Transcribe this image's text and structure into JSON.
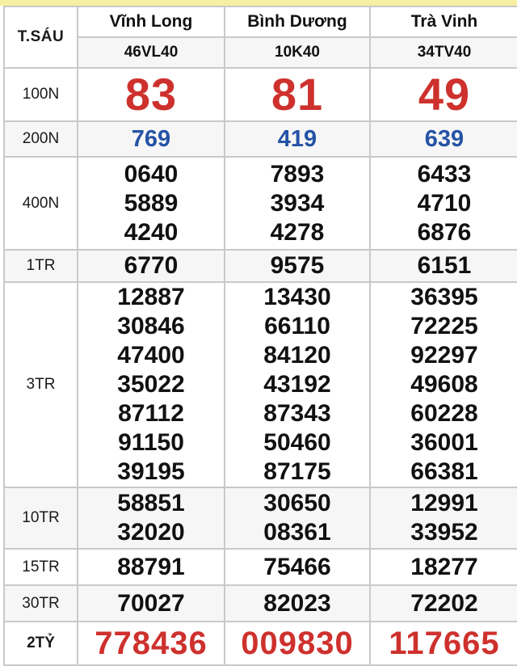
{
  "colors": {
    "special_red": "#ce312d",
    "blue": "#2553a6",
    "top_strip_yellow": "#f6f0a2",
    "border_gray": "#c9c9c9",
    "shade_gray": "#f6f6f6"
  },
  "table": {
    "corner_label": "T.SÁU",
    "provinces": [
      {
        "name": "Vĩnh Long",
        "code": "46VL40"
      },
      {
        "name": "Bình Dương",
        "code": "10K40"
      },
      {
        "name": "Trà Vinh",
        "code": "34TV40"
      }
    ],
    "prize_rows": [
      {
        "label": "100N",
        "style": "special",
        "values": [
          [
            "83"
          ],
          [
            "81"
          ],
          [
            "49"
          ]
        ]
      },
      {
        "label": "200N",
        "style": "blue",
        "values": [
          [
            "769"
          ],
          [
            "419"
          ],
          [
            "639"
          ]
        ]
      },
      {
        "label": "400N",
        "style": "normal",
        "values": [
          [
            "0640",
            "5889",
            "4240"
          ],
          [
            "7893",
            "3934",
            "4278"
          ],
          [
            "6433",
            "4710",
            "6876"
          ]
        ]
      },
      {
        "label": "1TR",
        "style": "normal",
        "values": [
          [
            "6770"
          ],
          [
            "9575"
          ],
          [
            "6151"
          ]
        ]
      },
      {
        "label": "3TR",
        "style": "normal",
        "values": [
          [
            "12887",
            "30846",
            "47400",
            "35022",
            "87112",
            "91150",
            "39195"
          ],
          [
            "13430",
            "66110",
            "84120",
            "43192",
            "87343",
            "50460",
            "87175"
          ],
          [
            "36395",
            "72225",
            "92297",
            "49608",
            "60228",
            "36001",
            "66381"
          ]
        ]
      },
      {
        "label": "10TR",
        "style": "normal",
        "values": [
          [
            "58851",
            "32020"
          ],
          [
            "30650",
            "08361"
          ],
          [
            "12991",
            "33952"
          ]
        ]
      },
      {
        "label": "15TR",
        "style": "normal",
        "values": [
          [
            "88791"
          ],
          [
            "75466"
          ],
          [
            "18277"
          ]
        ]
      },
      {
        "label": "30TR",
        "style": "normal",
        "values": [
          [
            "70027"
          ],
          [
            "82023"
          ],
          [
            "72202"
          ]
        ]
      },
      {
        "label": "2TỶ",
        "style": "jackpot",
        "values": [
          [
            "778436"
          ],
          [
            "009830"
          ],
          [
            "117665"
          ]
        ]
      }
    ]
  }
}
